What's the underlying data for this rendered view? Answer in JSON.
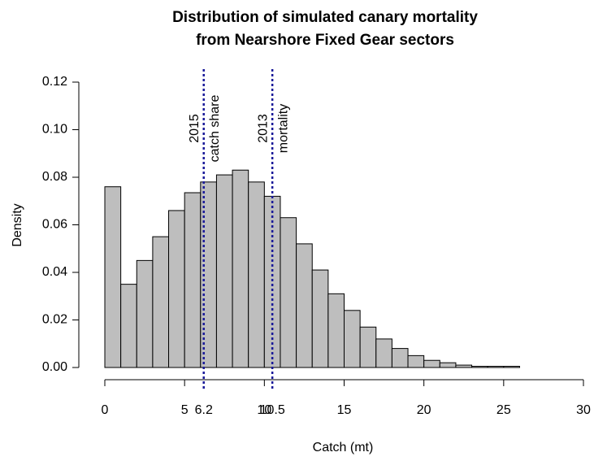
{
  "chart_data": {
    "type": "histogram",
    "title": [
      "Distribution of simulated canary mortality",
      "from Nearshore Fixed Gear sectors"
    ],
    "x_label": "Catch (mt)",
    "y_label": "Density",
    "bins": [
      0,
      1,
      2,
      3,
      4,
      5,
      6,
      7,
      8,
      9,
      10,
      11,
      12,
      13,
      14,
      15,
      16,
      17,
      18,
      19,
      20,
      21,
      22,
      23,
      24,
      25,
      26,
      27,
      28,
      29,
      30
    ],
    "values": [
      0.076,
      0.035,
      0.045,
      0.055,
      0.066,
      0.0735,
      0.078,
      0.081,
      0.083,
      0.078,
      0.072,
      0.063,
      0.052,
      0.041,
      0.031,
      0.024,
      0.017,
      0.012,
      0.008,
      0.005,
      0.003,
      0.002,
      0.001,
      0.0005,
      0.0005,
      0.0005,
      0,
      0,
      0,
      0
    ],
    "color": "#bebebe",
    "xlim": [
      0,
      30
    ],
    "xticks": [
      0,
      5,
      10,
      15,
      20,
      25,
      30
    ],
    "ylim": [
      0,
      0.12
    ],
    "yticks": [
      {
        "value": 0,
        "label": "0.00"
      },
      {
        "value": 0.02,
        "label": "0.02"
      },
      {
        "value": 0.04,
        "label": "0.04"
      },
      {
        "value": 0.06,
        "label": "0.06"
      },
      {
        "value": 0.08,
        "label": "0.08"
      },
      {
        "value": 0.1,
        "label": "0.10"
      },
      {
        "value": 0.12,
        "label": "0.12"
      }
    ],
    "annotation_color": "#1a1a99",
    "annotations": [
      {
        "x": 6.2,
        "lines": [
          "2015",
          "catch share"
        ]
      },
      {
        "x": 10.5,
        "lines": [
          "2013",
          "mortality"
        ]
      }
    ]
  }
}
